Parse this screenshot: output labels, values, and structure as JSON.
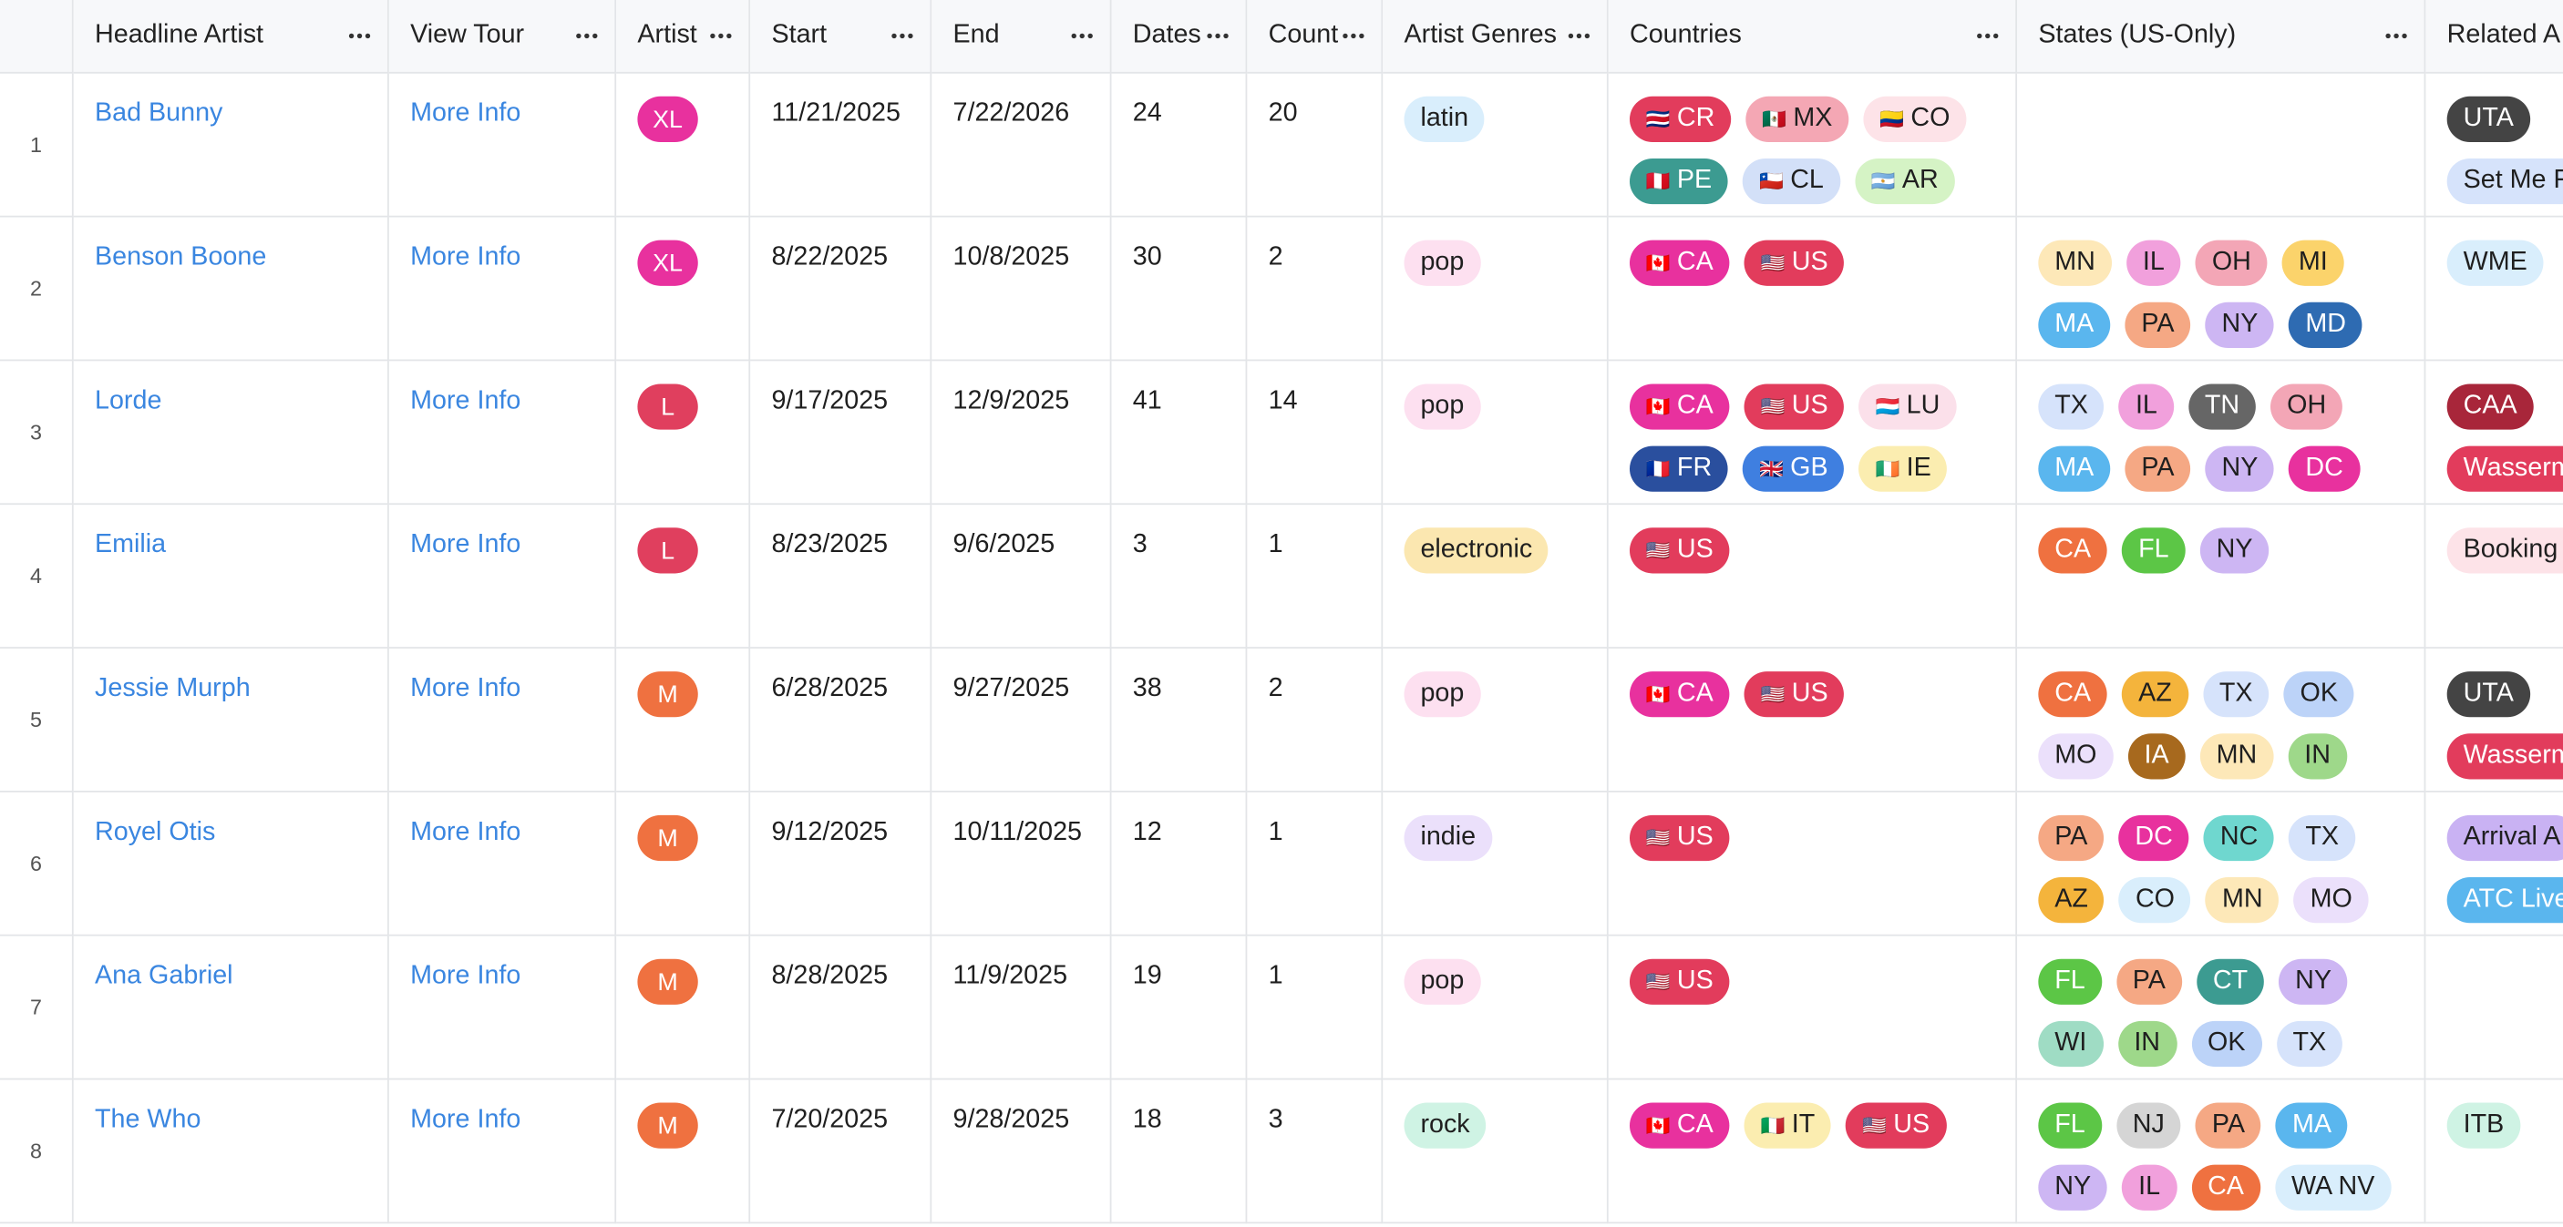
{
  "header": {
    "columns": [
      "Headline Artist",
      "View Tour",
      "Artist",
      "Start",
      "End",
      "Dates",
      "Count",
      "Artist Genres",
      "Countries",
      "States (US-Only)",
      "Related A"
    ]
  },
  "rows": [
    {
      "number": 1,
      "headline_artist": "Bad Bunny",
      "view_tour": "More Info",
      "artist": {
        "label": "XL",
        "color": "#e8319e"
      },
      "start": "11/21/2025",
      "end": "7/22/2026",
      "dates": 24,
      "count": 20,
      "genres": [
        {
          "label": "latin",
          "color": "#d9eefc"
        }
      ],
      "countries": [
        {
          "flag": "🇨🇷",
          "label": "CR",
          "color": "#e23c5c"
        },
        {
          "flag": "🇲🇽",
          "label": "MX",
          "color": "#f4a7b4"
        },
        {
          "flag": "🇨🇴",
          "label": "CO",
          "color": "#fde3e8"
        },
        {
          "flag": "🇵🇪",
          "label": "PE",
          "color": "#3c9b91"
        },
        {
          "flag": "🇨🇱",
          "label": "CL",
          "color": "#d3e0f8"
        },
        {
          "flag": "🇦🇷",
          "label": "AR",
          "color": "#d5f3c5"
        }
      ],
      "states": [],
      "related": [
        {
          "label": "UTA",
          "color": "#444444"
        },
        {
          "label": "Set Me F",
          "color": "#d6e3fb"
        }
      ]
    },
    {
      "number": 2,
      "headline_artist": "Benson Boone",
      "view_tour": "More Info",
      "artist": {
        "label": "XL",
        "color": "#e8319e"
      },
      "start": "8/22/2025",
      "end": "10/8/2025",
      "dates": 30,
      "count": 2,
      "genres": [
        {
          "label": "pop",
          "color": "#fde0f0"
        }
      ],
      "countries": [
        {
          "flag": "🇨🇦",
          "label": "CA",
          "color": "#e8319e"
        },
        {
          "flag": "🇺🇸",
          "label": "US",
          "color": "#e23c5c"
        }
      ],
      "states": [
        {
          "label": "MN",
          "color": "#fde8b8"
        },
        {
          "label": "IL",
          "color": "#f1a0dc"
        },
        {
          "label": "OH",
          "color": "#f3a6b6"
        },
        {
          "label": "MI",
          "color": "#fbd36b"
        },
        {
          "label": "MA",
          "color": "#5ab6ee"
        },
        {
          "label": "PA",
          "color": "#f5a884"
        },
        {
          "label": "NY",
          "color": "#cdb6f3"
        },
        {
          "label": "MD",
          "color": "#2e6bb2"
        }
      ],
      "related": [
        {
          "label": "WME",
          "color": "#d9eefc"
        }
      ]
    },
    {
      "number": 3,
      "headline_artist": "Lorde",
      "view_tour": "More Info",
      "artist": {
        "label": "L",
        "color": "#e03f5e"
      },
      "start": "9/17/2025",
      "end": "12/9/2025",
      "dates": 41,
      "count": 14,
      "genres": [
        {
          "label": "pop",
          "color": "#fde0f0"
        }
      ],
      "countries": [
        {
          "flag": "🇨🇦",
          "label": "CA",
          "color": "#e8319e"
        },
        {
          "flag": "🇺🇸",
          "label": "US",
          "color": "#e23c5c"
        },
        {
          "flag": "🇱🇺",
          "label": "LU",
          "color": "#fbe0ea"
        },
        {
          "flag": "🇫🇷",
          "label": "FR",
          "color": "#2a4f9e"
        },
        {
          "flag": "🇬🇧",
          "label": "GB",
          "color": "#3f7fe0"
        },
        {
          "flag": "🇮🇪",
          "label": "IE",
          "color": "#fbedb0"
        }
      ],
      "states": [
        {
          "label": "TX",
          "color": "#d6e3fb"
        },
        {
          "label": "IL",
          "color": "#f1a0dc"
        },
        {
          "label": "TN",
          "color": "#666666"
        },
        {
          "label": "OH",
          "color": "#f3a6b6"
        },
        {
          "label": "MA",
          "color": "#5ab6ee"
        },
        {
          "label": "PA",
          "color": "#f5a884"
        },
        {
          "label": "NY",
          "color": "#cdb6f3"
        },
        {
          "label": "DC",
          "color": "#e8319e"
        }
      ],
      "related": [
        {
          "label": "CAA",
          "color": "#a8263a"
        },
        {
          "label": "Wasserm",
          "color": "#e23c5c"
        }
      ]
    },
    {
      "number": 4,
      "headline_artist": "Emilia",
      "view_tour": "More Info",
      "artist": {
        "label": "L",
        "color": "#e03f5e"
      },
      "start": "8/23/2025",
      "end": "9/6/2025",
      "dates": 3,
      "count": 1,
      "genres": [
        {
          "label": "electronic",
          "color": "#fbe7b0"
        }
      ],
      "countries": [
        {
          "flag": "🇺🇸",
          "label": "US",
          "color": "#e23c5c"
        }
      ],
      "states": [
        {
          "label": "CA",
          "color": "#ef7140"
        },
        {
          "label": "FL",
          "color": "#5cc646"
        },
        {
          "label": "NY",
          "color": "#cdb6f3"
        }
      ],
      "related": [
        {
          "label": "Booking Managen",
          "color": "#fde3e8"
        }
      ]
    },
    {
      "number": 5,
      "headline_artist": "Jessie Murph",
      "view_tour": "More Info",
      "artist": {
        "label": "M",
        "color": "#ef7140"
      },
      "start": "6/28/2025",
      "end": "9/27/2025",
      "dates": 38,
      "count": 2,
      "genres": [
        {
          "label": "pop",
          "color": "#fde0f0"
        }
      ],
      "countries": [
        {
          "flag": "🇨🇦",
          "label": "CA",
          "color": "#e8319e"
        },
        {
          "flag": "🇺🇸",
          "label": "US",
          "color": "#e23c5c"
        }
      ],
      "states": [
        {
          "label": "CA",
          "color": "#ef7140"
        },
        {
          "label": "AZ",
          "color": "#f4b43c"
        },
        {
          "label": "TX",
          "color": "#d6e3fb"
        },
        {
          "label": "OK",
          "color": "#bcd3f8"
        },
        {
          "label": "MO",
          "color": "#ebe0fb"
        },
        {
          "label": "IA",
          "color": "#a7691e"
        },
        {
          "label": "MN",
          "color": "#fde8b8"
        },
        {
          "label": "IN",
          "color": "#9ed88a"
        }
      ],
      "related": [
        {
          "label": "UTA",
          "color": "#444444"
        },
        {
          "label": "Wasserm",
          "color": "#e23c5c"
        }
      ]
    },
    {
      "number": 6,
      "headline_artist": "Royel Otis",
      "view_tour": "More Info",
      "artist": {
        "label": "M",
        "color": "#ef7140"
      },
      "start": "9/12/2025",
      "end": "10/11/2025",
      "dates": 12,
      "count": 1,
      "genres": [
        {
          "label": "indie",
          "color": "#ebe0fb"
        }
      ],
      "countries": [
        {
          "flag": "🇺🇸",
          "label": "US",
          "color": "#e23c5c"
        }
      ],
      "states": [
        {
          "label": "PA",
          "color": "#f5a884"
        },
        {
          "label": "DC",
          "color": "#e8319e"
        },
        {
          "label": "NC",
          "color": "#6fd7cf"
        },
        {
          "label": "TX",
          "color": "#d6e3fb"
        },
        {
          "label": "AZ",
          "color": "#f4b43c"
        },
        {
          "label": "CO",
          "color": "#d9eefc"
        },
        {
          "label": "MN",
          "color": "#fde8b8"
        },
        {
          "label": "MO",
          "color": "#ebe0fb"
        }
      ],
      "related": [
        {
          "label": "Arrival A",
          "color": "#c9b2f3"
        },
        {
          "label": "ATC Live",
          "color": "#5ab6ee"
        }
      ]
    },
    {
      "number": 7,
      "headline_artist": "Ana Gabriel",
      "view_tour": "More Info",
      "artist": {
        "label": "M",
        "color": "#ef7140"
      },
      "start": "8/28/2025",
      "end": "11/9/2025",
      "dates": 19,
      "count": 1,
      "genres": [
        {
          "label": "pop",
          "color": "#fde0f0"
        }
      ],
      "countries": [
        {
          "flag": "🇺🇸",
          "label": "US",
          "color": "#e23c5c"
        }
      ],
      "states": [
        {
          "label": "FL",
          "color": "#5cc646"
        },
        {
          "label": "PA",
          "color": "#f5a884"
        },
        {
          "label": "CT",
          "color": "#3c9b91"
        },
        {
          "label": "NY",
          "color": "#cdb6f3"
        },
        {
          "label": "WI",
          "color": "#9fdcc4"
        },
        {
          "label": "IN",
          "color": "#9ed88a"
        },
        {
          "label": "OK",
          "color": "#bcd3f8"
        },
        {
          "label": "TX",
          "color": "#d6e3fb"
        }
      ],
      "related": []
    },
    {
      "number": 8,
      "headline_artist": "The Who",
      "view_tour": "More Info",
      "artist": {
        "label": "M",
        "color": "#ef7140"
      },
      "start": "7/20/2025",
      "end": "9/28/2025",
      "dates": 18,
      "count": 3,
      "genres": [
        {
          "label": "rock",
          "color": "#cff3e4"
        }
      ],
      "countries": [
        {
          "flag": "🇨🇦",
          "label": "CA",
          "color": "#e8319e"
        },
        {
          "flag": "🇮🇹",
          "label": "IT",
          "color": "#fbedb0"
        },
        {
          "flag": "🇺🇸",
          "label": "US",
          "color": "#e23c5c"
        }
      ],
      "states": [
        {
          "label": "FL",
          "color": "#5cc646"
        },
        {
          "label": "NJ",
          "color": "#d5d5d5"
        },
        {
          "label": "PA",
          "color": "#f5a884"
        },
        {
          "label": "MA",
          "color": "#5ab6ee"
        },
        {
          "label": "NY",
          "color": "#cdb6f3"
        },
        {
          "label": "IL",
          "color": "#f1a0dc"
        },
        {
          "label": "CA",
          "color": "#ef7140"
        },
        {
          "label": "WA NV",
          "color": "#d9eefc"
        }
      ],
      "related": [
        {
          "label": "ITB",
          "color": "#cff3e4"
        }
      ]
    }
  ]
}
